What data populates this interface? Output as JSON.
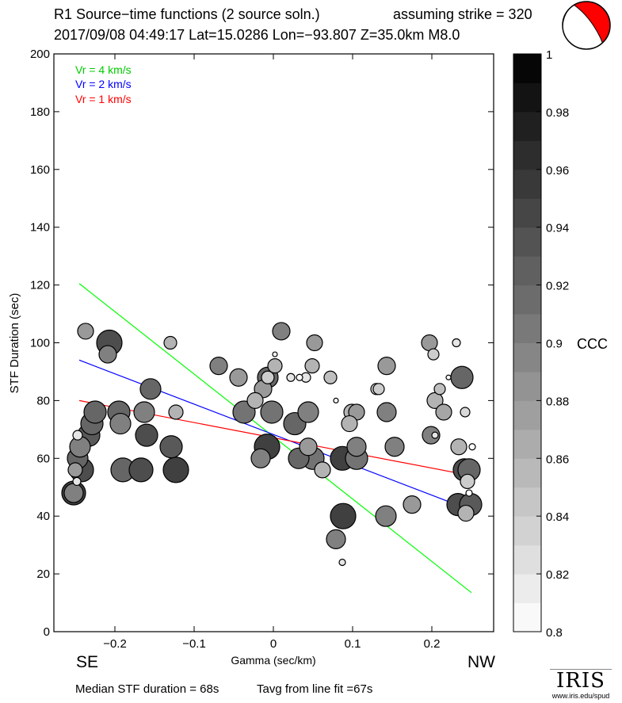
{
  "header": {
    "title": "R1 Source−time functions (2 source soln.)",
    "strike": "assuming strike = 320",
    "event": "2017/09/08 04:49:17  Lat=15.0286 Lon=−93.807  Z=35.0km  M8.0"
  },
  "footer": {
    "median": "Median STF duration = 68s",
    "tavg": "Tavg from line fit =67s",
    "logo_text": "IRIS",
    "logo_url": "www.iris.edu/spud"
  },
  "chart_data": {
    "type": "scatter",
    "xlabel": "Gamma (sec/km)",
    "ylabel": "STF Duration (sec)",
    "xlim": [
      -0.277,
      0.278
    ],
    "ylim": [
      0,
      200
    ],
    "xticks": [
      -0.2,
      -0.1,
      0,
      0.1,
      0.2
    ],
    "xtick_labels": [
      "−0.2",
      "−0.1",
      "0",
      "0.1",
      "0.2"
    ],
    "yticks": [
      0,
      20,
      40,
      60,
      80,
      100,
      120,
      140,
      160,
      180,
      200
    ],
    "ytick_labels": [
      "0",
      "20",
      "40",
      "60",
      "80",
      "100",
      "120",
      "140",
      "160",
      "180",
      "200"
    ],
    "left_label": "SE",
    "right_label": "NW",
    "colorbar": {
      "label": "CCC",
      "range": [
        0.8,
        1
      ],
      "tick_labels": [
        "0.8",
        "0.82",
        "0.84",
        "0.86",
        "0.88",
        "0.9",
        "0.92",
        "0.94",
        "0.96",
        "0.98",
        "1"
      ]
    },
    "lines": [
      {
        "name": "Vr = 4 km/s",
        "color": "#00ff00",
        "x": [
          -0.245,
          0.25
        ],
        "y": [
          120.5,
          13.5
        ]
      },
      {
        "name": "Vr = 2 km/s",
        "color": "#0000ff",
        "x": [
          -0.245,
          0.25
        ],
        "y": [
          94,
          42
        ]
      },
      {
        "name": "Vr = 1 km/s",
        "color": "#ff0000",
        "x": [
          -0.245,
          0.25
        ],
        "y": [
          80,
          54
        ]
      }
    ],
    "points_note": "gamma, duration, relative marker size, ccc",
    "points": [
      [
        -0.252,
        48,
        15,
        0.95
      ],
      [
        -0.252,
        48,
        12,
        0.9
      ],
      [
        -0.248,
        52,
        5,
        0.82
      ],
      [
        -0.25,
        56,
        9,
        0.88
      ],
      [
        -0.242,
        56,
        15,
        0.94
      ],
      [
        -0.19,
        56,
        15,
        0.92
      ],
      [
        -0.167,
        56,
        15,
        0.94
      ],
      [
        -0.123,
        56,
        16,
        0.95
      ],
      [
        -0.247,
        60,
        13,
        0.92
      ],
      [
        -0.244,
        64,
        13,
        0.9
      ],
      [
        -0.129,
        64,
        14,
        0.93
      ],
      [
        -0.247,
        68,
        6,
        0.82
      ],
      [
        -0.233,
        68,
        14,
        0.93
      ],
      [
        -0.16,
        68,
        14,
        0.94
      ],
      [
        -0.229,
        72,
        14,
        0.92
      ],
      [
        -0.193,
        72,
        13,
        0.9
      ],
      [
        -0.225,
        76,
        14,
        0.92
      ],
      [
        -0.195,
        76,
        14,
        0.92
      ],
      [
        -0.163,
        76,
        13,
        0.9
      ],
      [
        -0.123,
        76,
        9,
        0.86
      ],
      [
        -0.155,
        84,
        13,
        0.92
      ],
      [
        -0.209,
        96,
        11,
        0.9
      ],
      [
        -0.207,
        100,
        16,
        0.94
      ],
      [
        -0.13,
        100,
        8,
        0.86
      ],
      [
        -0.237,
        104,
        10,
        0.88
      ],
      [
        0.01,
        104,
        11,
        0.9
      ],
      [
        0.052,
        100,
        10,
        0.88
      ],
      [
        0.002,
        96,
        3,
        0.8
      ],
      [
        -0.069,
        92,
        11,
        0.9
      ],
      [
        0.002,
        92,
        9,
        0.86
      ],
      [
        0.049,
        92,
        9,
        0.86
      ],
      [
        0.143,
        92,
        11,
        0.88
      ],
      [
        -0.044,
        88,
        11,
        0.88
      ],
      [
        -0.007,
        88,
        13,
        0.92
      ],
      [
        -0.007,
        88,
        8,
        0.84
      ],
      [
        0.022,
        88,
        5,
        0.82
      ],
      [
        0.033,
        88,
        4,
        0.8
      ],
      [
        0.041,
        88,
        6,
        0.82
      ],
      [
        0.072,
        88,
        8,
        0.85
      ],
      [
        -0.013,
        84,
        11,
        0.88
      ],
      [
        0.13,
        84,
        7,
        0.84
      ],
      [
        0.133,
        84,
        7,
        0.84
      ],
      [
        -0.023,
        80,
        10,
        0.86
      ],
      [
        0.079,
        80,
        3,
        0.8
      ],
      [
        -0.037,
        76,
        14,
        0.91
      ],
      [
        -0.002,
        76,
        14,
        0.91
      ],
      [
        0.044,
        76,
        13,
        0.9
      ],
      [
        0.099,
        76,
        10,
        0.86
      ],
      [
        0.105,
        76,
        10,
        0.88
      ],
      [
        0.143,
        76,
        12,
        0.9
      ],
      [
        0.027,
        72,
        14,
        0.92
      ],
      [
        0.096,
        72,
        10,
        0.86
      ],
      [
        -0.008,
        64,
        16,
        0.95
      ],
      [
        0.044,
        64,
        11,
        0.88
      ],
      [
        0.105,
        64,
        12,
        0.9
      ],
      [
        0.153,
        64,
        12,
        0.9
      ],
      [
        -0.016,
        60,
        12,
        0.9
      ],
      [
        0.032,
        60,
        13,
        0.92
      ],
      [
        0.05,
        60,
        14,
        0.91
      ],
      [
        0.087,
        60,
        15,
        0.95
      ],
      [
        0.105,
        60,
        14,
        0.91
      ],
      [
        0.062,
        56,
        10,
        0.86
      ],
      [
        0.175,
        44,
        11,
        0.88
      ],
      [
        0.088,
        40,
        16,
        0.95
      ],
      [
        0.142,
        40,
        13,
        0.9
      ],
      [
        0.079,
        32,
        12,
        0.9
      ],
      [
        0.087,
        24,
        4,
        0.82
      ],
      [
        0.197,
        100,
        10,
        0.88
      ],
      [
        0.231,
        100,
        5,
        0.82
      ],
      [
        0.202,
        96,
        7,
        0.84
      ],
      [
        0.238,
        88,
        14,
        0.92
      ],
      [
        0.221,
        88,
        3,
        0.8
      ],
      [
        0.21,
        84,
        7,
        0.85
      ],
      [
        0.204,
        80,
        10,
        0.86
      ],
      [
        0.215,
        76,
        10,
        0.87
      ],
      [
        0.242,
        76,
        6,
        0.83
      ],
      [
        0.199,
        68,
        11,
        0.9
      ],
      [
        0.204,
        68,
        4,
        0.82
      ],
      [
        0.234,
        64,
        10,
        0.86
      ],
      [
        0.251,
        64,
        4,
        0.8
      ],
      [
        0.241,
        56,
        14,
        0.94
      ],
      [
        0.247,
        56,
        14,
        0.92
      ],
      [
        0.245,
        52,
        9,
        0.84
      ],
      [
        0.247,
        48,
        4,
        0.8
      ],
      [
        0.233,
        44,
        14,
        0.94
      ],
      [
        0.243,
        41,
        10,
        0.86
      ],
      [
        0.249,
        44,
        14,
        0.93
      ]
    ]
  }
}
